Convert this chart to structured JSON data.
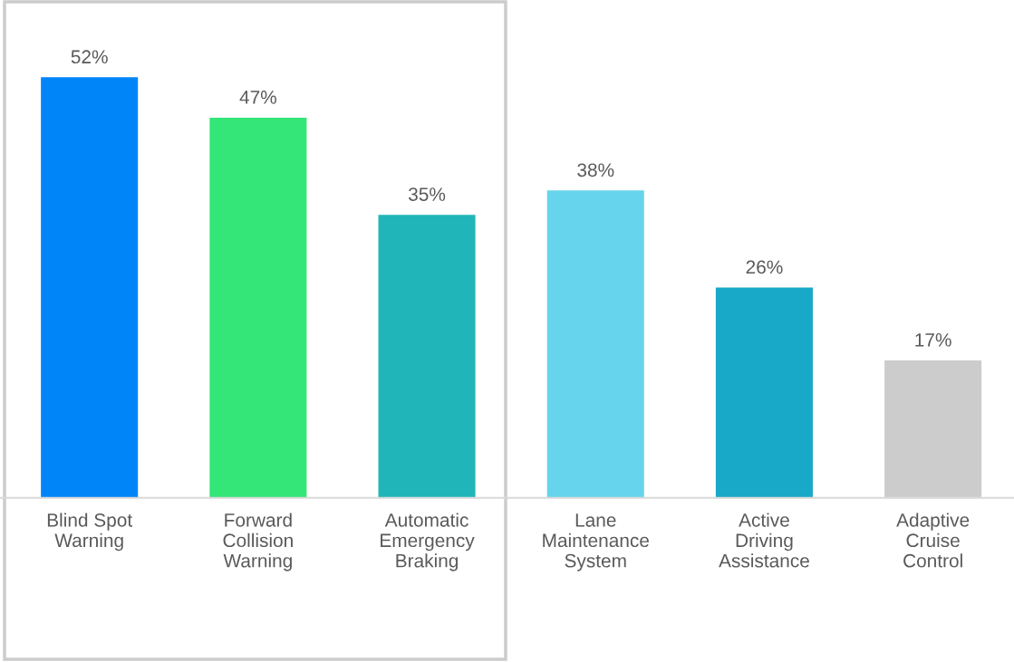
{
  "chart_data": {
    "type": "bar",
    "categories": [
      "Blind Spot\nWarning",
      "Forward\nCollision\nWarning",
      "Automatic\nEmergency\nBraking",
      "Lane\nMaintenance\nSystem",
      "Active\nDriving\nAssistance",
      "Adaptive\nCruise\nControl"
    ],
    "values": [
      52,
      47,
      35,
      38,
      26,
      17
    ],
    "colors": [
      "#0085f8",
      "#33e677",
      "#20b5b8",
      "#66d4ec",
      "#18a8c8",
      "#cccccc"
    ],
    "value_labels": [
      "52%",
      "47%",
      "35%",
      "38%",
      "26%",
      "17%"
    ],
    "tick_labels": "x",
    "grid": false,
    "legend": false
  }
}
